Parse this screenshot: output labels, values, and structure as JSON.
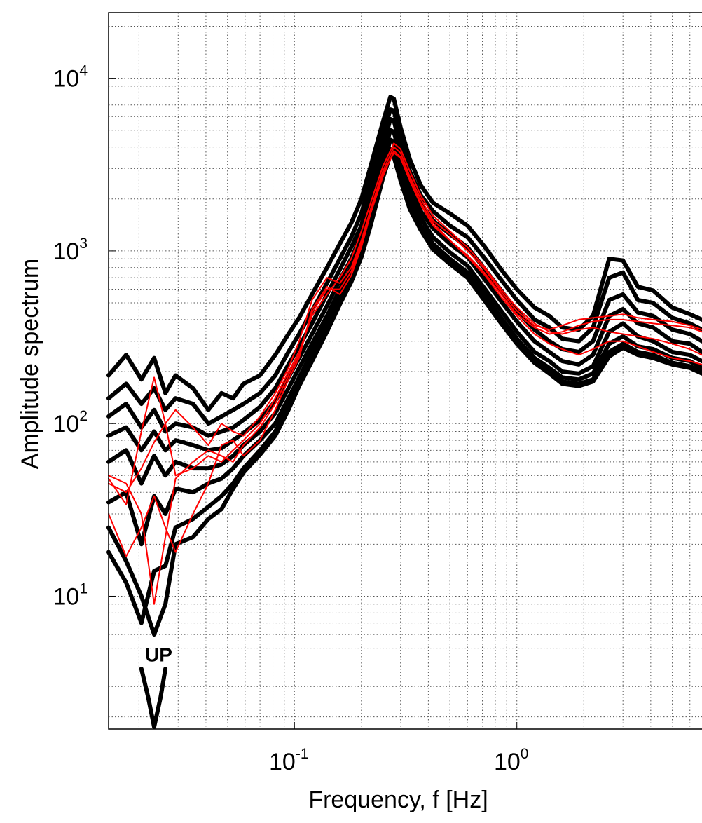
{
  "chart_data": {
    "type": "line",
    "title": "",
    "xlabel": "Frequency, f [Hz]",
    "ylabel": "Amplitude spectrum",
    "xscale": "log",
    "yscale": "log",
    "xlim": [
      0.0146,
      6.8
    ],
    "ylim": [
      1.7,
      24000
    ],
    "grid": "on",
    "legend": "none",
    "x_tick_labels": [
      {
        "value": 0.1,
        "base": "10",
        "exp": "-1"
      },
      {
        "value": 1,
        "base": "10",
        "exp": "0"
      }
    ],
    "y_tick_labels": [
      {
        "value": 10,
        "base": "10",
        "exp": "1"
      },
      {
        "value": 100,
        "base": "10",
        "exp": "2"
      },
      {
        "value": 1000,
        "base": "10",
        "exp": "3"
      },
      {
        "value": 10000,
        "base": "10",
        "exp": "4"
      }
    ],
    "annotations": [
      {
        "text": "UP",
        "x": 0.0228,
        "y": 4.2
      }
    ],
    "colors": {
      "ensemble": "#000000",
      "highlight": "#ff0000",
      "grid": "#555555"
    },
    "series": [
      {
        "color": "#000000",
        "x": [
          0.0146,
          0.0175,
          0.0205,
          0.0234,
          0.0263,
          0.0292,
          0.035,
          0.041,
          0.047,
          0.053,
          0.059,
          0.07,
          0.082,
          0.094,
          0.105,
          0.12,
          0.14,
          0.16,
          0.18,
          0.2,
          0.22,
          0.25,
          0.27,
          0.28,
          0.3,
          0.33,
          0.37,
          0.42,
          0.5,
          0.6,
          0.72,
          0.85,
          1.0,
          1.2,
          1.4,
          1.6,
          1.9,
          2.2,
          2.6,
          3.0,
          3.5,
          4.1,
          5.0,
          6.0,
          6.8
        ],
        "y": [
          190,
          250,
          180,
          240,
          150,
          190,
          160,
          120,
          150,
          140,
          170,
          190,
          250,
          330,
          410,
          560,
          800,
          1100,
          1450,
          2000,
          3100,
          5600,
          7800,
          7600,
          5200,
          3400,
          2400,
          1900,
          1650,
          1400,
          1050,
          780,
          600,
          470,
          420,
          360,
          350,
          420,
          900,
          880,
          620,
          590,
          470,
          430,
          400
        ]
      },
      {
        "color": "#000000",
        "x": [
          0.0146,
          0.0175,
          0.0205,
          0.0234,
          0.0263,
          0.0292,
          0.035,
          0.041,
          0.047,
          0.053,
          0.059,
          0.07,
          0.082,
          0.094,
          0.105,
          0.12,
          0.14,
          0.16,
          0.18,
          0.2,
          0.22,
          0.25,
          0.27,
          0.28,
          0.3,
          0.33,
          0.37,
          0.42,
          0.5,
          0.6,
          0.72,
          0.85,
          1.0,
          1.2,
          1.4,
          1.6,
          1.9,
          2.2,
          2.6,
          3.0,
          3.5,
          4.1,
          5.0,
          6.0,
          6.8
        ],
        "y": [
          140,
          170,
          130,
          160,
          120,
          140,
          130,
          100,
          110,
          120,
          130,
          150,
          190,
          260,
          330,
          450,
          650,
          900,
          1200,
          1650,
          2600,
          4700,
          6600,
          6500,
          4400,
          2900,
          2100,
          1700,
          1400,
          1200,
          900,
          680,
          520,
          400,
          360,
          310,
          300,
          360,
          700,
          750,
          520,
          500,
          410,
          380,
          350
        ]
      },
      {
        "color": "#000000",
        "x": [
          0.0146,
          0.0175,
          0.0205,
          0.0234,
          0.0263,
          0.0292,
          0.035,
          0.041,
          0.047,
          0.053,
          0.059,
          0.07,
          0.082,
          0.094,
          0.105,
          0.12,
          0.14,
          0.16,
          0.18,
          0.2,
          0.22,
          0.25,
          0.27,
          0.28,
          0.3,
          0.33,
          0.37,
          0.42,
          0.5,
          0.6,
          0.72,
          0.85,
          1.0,
          1.2,
          1.4,
          1.6,
          1.9,
          2.2,
          2.6,
          3.0,
          3.5,
          4.1,
          5.0,
          6.0,
          6.8
        ],
        "y": [
          110,
          130,
          95,
          120,
          90,
          100,
          95,
          85,
          90,
          95,
          105,
          125,
          160,
          220,
          280,
          380,
          560,
          780,
          1050,
          1400,
          2200,
          4000,
          5800,
          5700,
          3900,
          2600,
          1900,
          1500,
          1250,
          1050,
          780,
          590,
          450,
          350,
          300,
          270,
          260,
          300,
          520,
          560,
          440,
          420,
          350,
          330,
          300
        ]
      },
      {
        "color": "#000000",
        "x": [
          0.0146,
          0.0175,
          0.0205,
          0.0234,
          0.0263,
          0.0292,
          0.035,
          0.041,
          0.047,
          0.053,
          0.059,
          0.07,
          0.082,
          0.094,
          0.105,
          0.12,
          0.14,
          0.16,
          0.18,
          0.2,
          0.22,
          0.25,
          0.27,
          0.28,
          0.3,
          0.33,
          0.37,
          0.42,
          0.5,
          0.6,
          0.72,
          0.85,
          1.0,
          1.2,
          1.4,
          1.6,
          1.9,
          2.2,
          2.6,
          3.0,
          3.5,
          4.1,
          5.0,
          6.0,
          6.8
        ],
        "y": [
          85,
          95,
          70,
          90,
          70,
          80,
          75,
          70,
          72,
          80,
          88,
          105,
          135,
          185,
          240,
          330,
          480,
          680,
          900,
          1250,
          1900,
          3500,
          5000,
          4900,
          3400,
          2300,
          1700,
          1350,
          1100,
          920,
          680,
          510,
          390,
          300,
          260,
          230,
          220,
          250,
          420,
          460,
          380,
          360,
          300,
          290,
          260
        ]
      },
      {
        "color": "#000000",
        "x": [
          0.0146,
          0.0175,
          0.0205,
          0.0234,
          0.0263,
          0.0292,
          0.035,
          0.041,
          0.047,
          0.053,
          0.059,
          0.07,
          0.082,
          0.094,
          0.105,
          0.12,
          0.14,
          0.16,
          0.18,
          0.2,
          0.22,
          0.25,
          0.27,
          0.28,
          0.3,
          0.33,
          0.37,
          0.42,
          0.5,
          0.6,
          0.72,
          0.85,
          1.0,
          1.2,
          1.4,
          1.6,
          1.9,
          2.2,
          2.6,
          3.0,
          3.5,
          4.1,
          5.0,
          6.0,
          6.8
        ],
        "y": [
          60,
          70,
          45,
          65,
          50,
          60,
          55,
          55,
          58,
          65,
          75,
          90,
          115,
          160,
          210,
          290,
          420,
          600,
          800,
          1100,
          1650,
          3100,
          4400,
          4300,
          3000,
          2050,
          1550,
          1200,
          980,
          820,
          600,
          450,
          340,
          260,
          230,
          200,
          195,
          215,
          340,
          380,
          320,
          300,
          260,
          250,
          230
        ]
      },
      {
        "color": "#000000",
        "x": [
          0.0146,
          0.0175,
          0.0205,
          0.0234,
          0.0263,
          0.0292,
          0.035,
          0.041,
          0.047,
          0.053,
          0.059,
          0.07,
          0.082,
          0.094,
          0.105,
          0.12,
          0.14,
          0.16,
          0.18,
          0.2,
          0.22,
          0.25,
          0.27,
          0.28,
          0.3,
          0.33,
          0.37,
          0.42,
          0.5,
          0.6,
          0.72,
          0.85,
          1.0,
          1.2,
          1.4,
          1.6,
          1.9,
          2.2,
          2.6,
          3.0,
          3.5,
          4.1,
          5.0,
          6.0,
          6.8
        ],
        "y": [
          35,
          40,
          20,
          38,
          30,
          42,
          40,
          45,
          48,
          55,
          65,
          80,
          100,
          140,
          185,
          260,
          380,
          540,
          720,
          1000,
          1500,
          2800,
          3900,
          3800,
          2700,
          1850,
          1400,
          1100,
          900,
          750,
          550,
          410,
          310,
          240,
          210,
          185,
          180,
          195,
          290,
          320,
          280,
          270,
          240,
          230,
          210
        ]
      },
      {
        "color": "#000000",
        "x": [
          0.0146,
          0.0175,
          0.0205,
          0.0234,
          0.0263,
          0.0292,
          0.035,
          0.041,
          0.047,
          0.053,
          0.059,
          0.07,
          0.082,
          0.094,
          0.105,
          0.12,
          0.14,
          0.16,
          0.18,
          0.2,
          0.22,
          0.25,
          0.27,
          0.28,
          0.3,
          0.33,
          0.37,
          0.42,
          0.5,
          0.6,
          0.72,
          0.85,
          1.0,
          1.2,
          1.4,
          1.6,
          1.9,
          2.2,
          2.6,
          3.0,
          3.5,
          4.1,
          5.0,
          6.0,
          6.8
        ],
        "y": [
          18,
          12,
          7,
          14,
          15,
          25,
          28,
          33,
          38,
          45,
          55,
          70,
          90,
          125,
          170,
          240,
          350,
          500,
          680,
          950,
          1450,
          2700,
          3700,
          3600,
          2600,
          1800,
          1350,
          1050,
          860,
          720,
          520,
          390,
          300,
          230,
          200,
          175,
          170,
          180,
          260,
          290,
          260,
          250,
          225,
          215,
          200
        ]
      },
      {
        "color": "#000000",
        "x": [
          0.0146,
          0.0175,
          0.0205,
          0.0234,
          0.0263,
          0.0292,
          0.035,
          0.041,
          0.047,
          0.053,
          0.059,
          0.07,
          0.082,
          0.094,
          0.105,
          0.12,
          0.14,
          0.16,
          0.18,
          0.2,
          0.22,
          0.25,
          0.27,
          0.28,
          0.3,
          0.33,
          0.37,
          0.42,
          0.5,
          0.6,
          0.72,
          0.85,
          1.0,
          1.2,
          1.4,
          1.6,
          1.9,
          2.2,
          2.6,
          3.0,
          3.5,
          4.1,
          5.0,
          6.0,
          6.8
        ],
        "y": [
          25,
          16,
          10,
          6,
          9,
          20,
          22,
          28,
          32,
          42,
          52,
          66,
          85,
          120,
          165,
          230,
          340,
          490,
          660,
          920,
          1400,
          2650,
          3600,
          3500,
          2550,
          1750,
          1320,
          1020,
          840,
          700,
          510,
          380,
          290,
          225,
          195,
          170,
          165,
          175,
          245,
          275,
          250,
          240,
          220,
          210,
          195
        ]
      },
      {
        "color": "#000000",
        "x": [
          0.0205,
          0.022,
          0.0234,
          0.025,
          0.0263
        ],
        "y": [
          3.8,
          2.6,
          1.75,
          2.6,
          3.8
        ]
      },
      {
        "color": "#ff0000",
        "x": [
          0.0146,
          0.0175,
          0.0205,
          0.0234,
          0.0263,
          0.0292,
          0.035,
          0.041,
          0.047,
          0.053,
          0.059,
          0.07,
          0.082,
          0.094,
          0.105,
          0.12,
          0.14,
          0.16,
          0.18,
          0.2,
          0.22,
          0.25,
          0.28,
          0.3,
          0.33,
          0.37,
          0.42,
          0.5,
          0.6,
          0.72,
          0.85,
          1.0,
          1.2,
          1.4,
          1.6,
          1.9,
          2.2,
          2.6,
          3.0,
          3.5,
          4.1,
          5.0,
          6.0,
          6.8
        ],
        "y": [
          48,
          34,
          90,
          185,
          100,
          50,
          55,
          65,
          60,
          70,
          80,
          100,
          140,
          200,
          260,
          420,
          560,
          700,
          900,
          1300,
          1900,
          3100,
          4200,
          3900,
          2900,
          2100,
          1600,
          1300,
          1050,
          800,
          600,
          470,
          380,
          340,
          330,
          350,
          360,
          340,
          330,
          320,
          310,
          290,
          270,
          250
        ]
      },
      {
        "color": "#ff0000",
        "x": [
          0.0146,
          0.0175,
          0.0205,
          0.0234,
          0.0263,
          0.0292,
          0.035,
          0.041,
          0.047,
          0.053,
          0.059,
          0.07,
          0.082,
          0.094,
          0.105,
          0.12,
          0.14,
          0.16,
          0.18,
          0.2,
          0.22,
          0.25,
          0.28,
          0.3,
          0.33,
          0.37,
          0.42,
          0.5,
          0.6,
          0.72,
          0.85,
          1.0,
          1.2,
          1.4,
          1.6,
          1.9,
          2.2,
          2.6,
          3.0,
          3.5,
          4.1,
          5.0,
          6.0,
          6.8
        ],
        "y": [
          45,
          40,
          55,
          78,
          100,
          120,
          95,
          75,
          100,
          90,
          85,
          110,
          150,
          210,
          300,
          520,
          700,
          650,
          800,
          1150,
          1750,
          2900,
          4000,
          3700,
          2700,
          2000,
          1500,
          1250,
          1000,
          780,
          580,
          450,
          370,
          350,
          370,
          400,
          410,
          420,
          430,
          410,
          400,
          390,
          370,
          350
        ]
      },
      {
        "color": "#ff0000",
        "x": [
          0.0146,
          0.0175,
          0.0205,
          0.0234,
          0.0263,
          0.0292,
          0.035,
          0.041,
          0.047,
          0.053,
          0.059,
          0.07,
          0.082,
          0.094,
          0.105,
          0.12,
          0.14,
          0.16,
          0.18,
          0.2,
          0.22,
          0.25,
          0.28,
          0.3,
          0.33,
          0.37,
          0.42,
          0.5,
          0.6,
          0.72,
          0.85,
          1.0,
          1.2,
          1.4,
          1.6,
          1.9,
          2.2,
          2.6,
          3.0,
          3.5,
          4.1,
          5.0,
          6.0,
          6.8
        ],
        "y": [
          30,
          17,
          25,
          38,
          25,
          18,
          30,
          45,
          75,
          80,
          65,
          80,
          120,
          180,
          240,
          460,
          620,
          560,
          720,
          1050,
          1650,
          2700,
          3800,
          3500,
          2600,
          1900,
          1450,
          1150,
          920,
          720,
          540,
          420,
          330,
          290,
          270,
          250,
          270,
          300,
          300,
          280,
          260,
          240,
          230,
          220
        ]
      },
      {
        "color": "#ff0000",
        "x": [
          0.0146,
          0.0175,
          0.0205,
          0.0234,
          0.0263,
          0.0292,
          0.035,
          0.041,
          0.047,
          0.053,
          0.059,
          0.07,
          0.082,
          0.094,
          0.105,
          0.12,
          0.14,
          0.16,
          0.18,
          0.2,
          0.22,
          0.25,
          0.28,
          0.3,
          0.33,
          0.37,
          0.42,
          0.5,
          0.6,
          0.72,
          0.85,
          1.0,
          1.2,
          1.4,
          1.6,
          1.9,
          2.2,
          2.6,
          3.0,
          3.5,
          4.1,
          5.0,
          6.0,
          6.8
        ],
        "y": [
          50,
          45,
          30,
          9,
          22,
          48,
          60,
          70,
          65,
          60,
          75,
          95,
          130,
          190,
          250,
          440,
          600,
          600,
          760,
          1100,
          1700,
          2800,
          3700,
          3450,
          2550,
          1850,
          1400,
          1150,
          940,
          740,
          560,
          430,
          360,
          330,
          340,
          370,
          390,
          400,
          400,
          390,
          380,
          370,
          360,
          340
        ]
      }
    ]
  }
}
